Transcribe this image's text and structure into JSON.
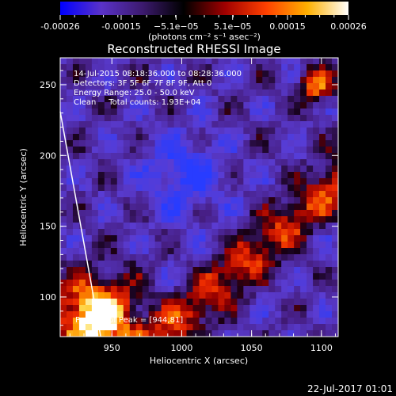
{
  "chart_data": {
    "type": "heatmap",
    "title": "Reconstructed RHESSI Image",
    "xlabel": "Heliocentric X (arcsec)",
    "ylabel": "Heliocentric Y (arcsec)",
    "xlim": [
      913,
      1112
    ],
    "ylim": [
      72,
      269
    ],
    "x_ticks": [
      950,
      1000,
      1050,
      1100
    ],
    "y_ticks": [
      100,
      150,
      200,
      250
    ],
    "colorbar": {
      "min": -0.00026,
      "max": 0.00026,
      "ticks": [
        -0.00026,
        -0.00015,
        -5.1e-05,
        5.1e-05,
        0.00015,
        0.00026
      ],
      "tick_labels": [
        "-0.00026",
        "-0.00015",
        "−5.1e−05",
        "5.1e−05",
        "0.00015",
        "0.00026"
      ],
      "unit_label": "(photons cm⁻² s⁻¹ asec⁻²)",
      "colors": [
        "#0000ff",
        "#5a32c8",
        "#3c1a6e",
        "#000000",
        "#a00000",
        "#ff4000",
        "#ffb000",
        "#ffffff"
      ]
    },
    "annotations": [
      "14-Jul-2015 08:18:36.000 to 08:28:36.000",
      "Detectors: 3F 5F 6F 7F 8F 9F, Att 0",
      "Energy Range: 25.0 - 50.0 keV",
      "Clean     Total counts: 1.93E+04"
    ],
    "peak_label": "Position of Peak = [944,81]",
    "peak": [
      944,
      81
    ],
    "limb_line": [
      [
        913,
        231
      ],
      [
        942,
        72
      ]
    ]
  },
  "footer": {
    "date": "22-Jul-2017 01:01"
  }
}
